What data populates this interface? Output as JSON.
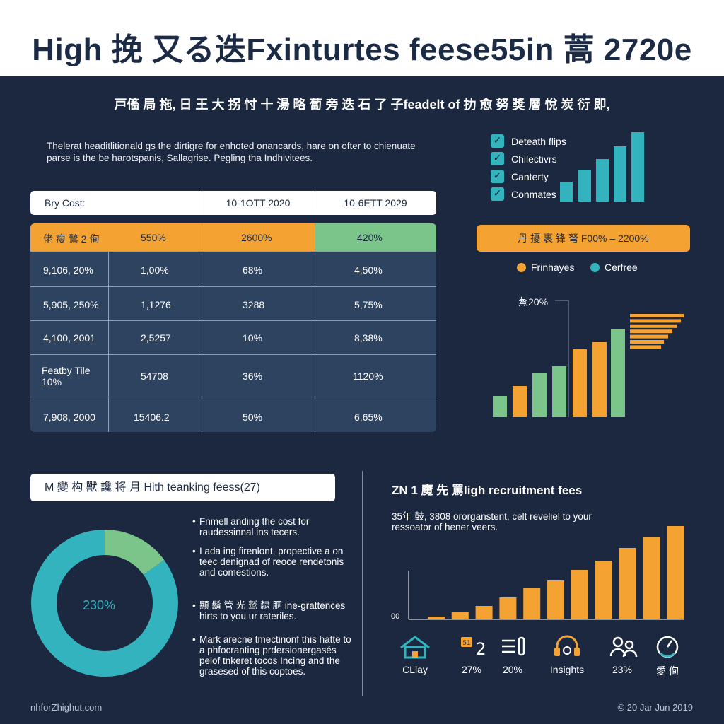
{
  "header": {
    "title": "High 挽 又る迭Fxinturtes feese55in 蒿 2720e",
    "subtitle": "戸傗 局 拖, 日 王 大 拐 忖 十 湯 略 蔔 旁 迭 石 了 子feadelt of 扐 愈 努 獎 層 悅 炭 衍 即,",
    "intro": "Thelerat headitlitionald gs the dirtigre for enhoted onancards, hare on ofter to chienuate parse is the be harotspanis, Sallagrise. Pegling tha Indhivitees."
  },
  "table": {
    "headers": [
      "Bry Cost:",
      "10-1OTT 2020",
      "10-6ETT 2029"
    ],
    "rows": [
      [
        "佬 瘦 鷙 2 侚",
        "550%",
        "2600%",
        "420%"
      ],
      [
        "9,106, 20%",
        "1,00%",
        "68%",
        "4,50%"
      ],
      [
        "5,905, 250%",
        "1,1276",
        "3288",
        "5,75%"
      ],
      [
        "4,100, 2001",
        "2,5257",
        "10%",
        "8,38%"
      ],
      [
        "Featby Tile 10%",
        "54708",
        "36%",
        "1120%"
      ],
      [
        "7,908, 2000",
        "15406.2",
        "50%",
        "6,65%"
      ]
    ]
  },
  "legend_checks": [
    "Deteath flips",
    "Chilectivrs",
    "Canterty",
    "Conmates"
  ],
  "banner": "丹 擾 裹 锋 弩 F00% – 2200%",
  "legend": {
    "a": "Frinhayes",
    "b": "Cerfree"
  },
  "annotation": "蒸20%",
  "section_title": "M 變 构 獸 讒 将 月 Hith teanking feess(27)",
  "donut": {
    "label": "230%"
  },
  "bullets": [
    "Fnmell anding the cost for raudessinnal ins tecers.",
    "I ada ing firenlont, propective a on teec denignad of reoce rendetonis and comestions.",
    "顯 鬍 管 光 鹫 隸 胴 ine-grattences hirts to you ur rateriles.",
    "Mark arecne tmectinonf this hatte to a phfocranting prdersionergasés pelof tnkeret tocos Incing and the grasesed of this coptoes."
  ],
  "recruit": {
    "title": "ZN 1 魔 先 罵ligh recruitment fees",
    "subtitle": "35年 鼓, 3808 ororganstent, celt reveliel to your ressoator of hener veers.",
    "axis_zero": "00"
  },
  "icons": [
    {
      "icon": "house-icon",
      "label": "CLlay"
    },
    {
      "icon": "chat-badge-icon",
      "label": "27%"
    },
    {
      "icon": "list-icon",
      "label": "20%"
    },
    {
      "icon": "headset-icon",
      "label": "Insights"
    },
    {
      "icon": "people-icon",
      "label": "23%"
    },
    {
      "icon": "gauge-icon",
      "label": "愛 侚"
    }
  ],
  "icon_badges": {
    "chat_number": "2",
    "chat_badge": "51"
  },
  "footer": {
    "left": "nhforZhighut.com",
    "right": "© 20 Jar Jun 2019"
  },
  "colors": {
    "navy": "#1b2840",
    "orange": "#f4a232",
    "teal": "#33b3bd",
    "green": "#7bc58a"
  },
  "chart_data": [
    {
      "type": "bar",
      "series": [
        {
          "name": "",
          "values": [
            28,
            45,
            60,
            78,
            98
          ]
        }
      ],
      "color": "teal"
    },
    {
      "type": "bar",
      "series": [
        {
          "name": "",
          "values": [
            30,
            44,
            62,
            72,
            96,
            106,
            125
          ]
        }
      ],
      "bar_colors": [
        "green",
        "orange",
        "green",
        "green",
        "orange",
        "orange",
        "green"
      ]
    },
    {
      "type": "bar",
      "orientation": "horizontal",
      "series": [
        {
          "name": "",
          "values": [
            76,
            72,
            66,
            60,
            54,
            48,
            44
          ]
        }
      ],
      "color": "orange"
    },
    {
      "type": "pie",
      "series": [
        {
          "name": "",
          "values": [
            15,
            85
          ]
        }
      ],
      "slice_colors": [
        "green",
        "teal"
      ]
    },
    {
      "type": "bar",
      "series": [
        {
          "name": "",
          "values": [
            4,
            10,
            19,
            31,
            44,
            55,
            70,
            83,
            101,
            116,
            132
          ]
        }
      ],
      "color": "orange"
    }
  ]
}
